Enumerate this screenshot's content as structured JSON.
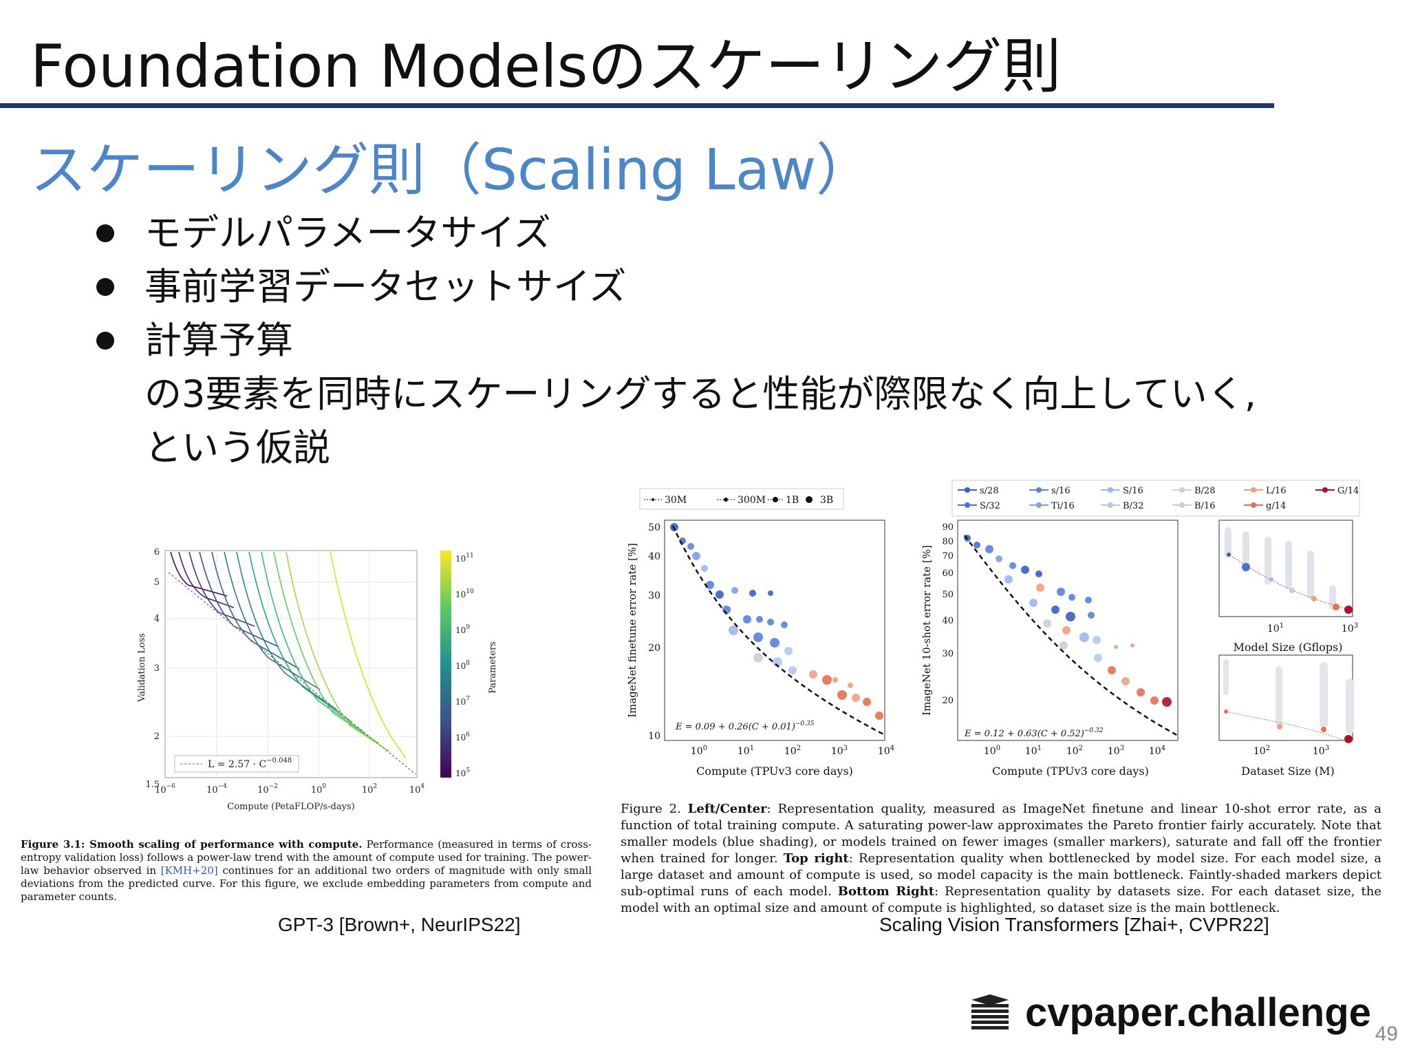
{
  "slide": {
    "title": "Foundation Modelsのスケーリング則",
    "subtitle": "スケーリング則（Scaling Law）",
    "bullets": [
      "モデルパラメータサイズ",
      "事前学習データセットサイズ",
      "計算予算"
    ],
    "continuation": [
      "の3要素を同時にスケーリングすると性能が際限なく向上していく,",
      "という仮説"
    ],
    "page_number": "49",
    "brand": "cvpaper.challenge",
    "colors": {
      "rule": "#1f3864",
      "subtitle": "#4a86c8"
    }
  },
  "gpt3_figure": {
    "y_axis_label": "Validation Loss",
    "x_axis_label": "Compute (PetaFLOP/s-days)",
    "colorbar_label": "Parameters",
    "y_ticks": [
      "6",
      "5",
      "4",
      "3",
      "2",
      "1.5"
    ],
    "x_ticks": [
      "10",
      "10",
      "10",
      "10",
      "10",
      "10"
    ],
    "x_tick_exps": [
      "−6",
      "−4",
      "−2",
      "0",
      "2",
      "4"
    ],
    "colorbar_ticks": [
      "10",
      "10",
      "10",
      "10",
      "10",
      "10",
      "10"
    ],
    "colorbar_exps": [
      "11",
      "10",
      "9",
      "8",
      "7",
      "6",
      "5"
    ],
    "legend_text": "L = 2.57 · C",
    "legend_exp": "−0.048",
    "caption_bold": "Figure 3.1:  Smooth scaling of performance with compute.",
    "caption_text": " Performance (measured in terms of cross-entropy validation loss) follows a power-law trend with the amount of compute used for training. The power-law behavior observed in ",
    "caption_cite": "[KMH+20]",
    "caption_text2": " continues for an additional two orders of magnitude with only small deviations from the predicted curve. For this figure, we exclude embedding parameters from compute and parameter counts.",
    "source": "GPT-3 [Brown+, NeurIPS22]"
  },
  "vit_figure": {
    "size_legend": [
      "30M",
      "300M",
      "1B",
      "3B"
    ],
    "model_legend": [
      "s/28",
      "s/16",
      "S/16",
      "B/28",
      "L/16",
      "G/14",
      "S/32",
      "Ti/16",
      "B/32",
      "B/16",
      "g/14"
    ],
    "model_colors": [
      "#3b5ec8",
      "#5a80e0",
      "#9ab8f0",
      "#c8cfd8",
      "#f0a080",
      "#b0102c",
      "#4a70d8",
      "#7aa0ea",
      "#b0c8f0",
      "#dcc8c0",
      "#e87050"
    ],
    "left_ylabel": "ImageNet finetune error rate [%]",
    "left_yticks": [
      "50",
      "40",
      "30",
      "20",
      "10"
    ],
    "left_formula": "E = 0.09 + 0.26(C + 0.01)",
    "left_formula_exp": "−0.35",
    "center_ylabel": "ImageNet 10-shot error rate [%]",
    "center_yticks": [
      "90",
      "80",
      "70",
      "60",
      "50",
      "40",
      "30",
      "20"
    ],
    "center_formula": "E = 0.12 + 0.63(C + 0.52)",
    "center_formula_exp": "−0.32",
    "compute_xticks": [
      "10",
      "10",
      "10",
      "10",
      "10"
    ],
    "compute_xexps": [
      "0",
      "1",
      "2",
      "3",
      "4"
    ],
    "compute_xlabel": "Compute (TPUv3 core days)",
    "model_size_xticks": [
      "10",
      "10"
    ],
    "model_size_xexps": [
      "1",
      "3"
    ],
    "model_size_xlabel": "Model Size (Gflops)",
    "dataset_xticks": [
      "10",
      "10"
    ],
    "dataset_xexps": [
      "2",
      "3"
    ],
    "dataset_xlabel": "Dataset Size (M)",
    "caption_lead": "Figure 2. ",
    "caption_b1": "Left/Center",
    "caption_t1": ": Representation quality, measured as ImageNet finetune and linear 10-shot error rate, as a function of total training compute. A saturating power-law approximates the Pareto frontier fairly accurately. Note that smaller models (blue shading), or models trained on fewer images (smaller markers), saturate and fall off the frontier when trained for longer. ",
    "caption_b2": "Top right",
    "caption_t2": ": Representation quality when bottlenecked by model size. For each model size, a large dataset and amount of compute is used, so model capacity is the main bottleneck. Faintly-shaded markers depict sub-optimal runs of each model. ",
    "caption_b3": "Bottom Right",
    "caption_t3": ": Representation quality by datasets size. For each dataset size, the model with an optimal size and amount of compute is highlighted, so dataset size is the main bottleneck.",
    "source": "Scaling Vision Transformers [Zhai+, CVPR22]"
  }
}
